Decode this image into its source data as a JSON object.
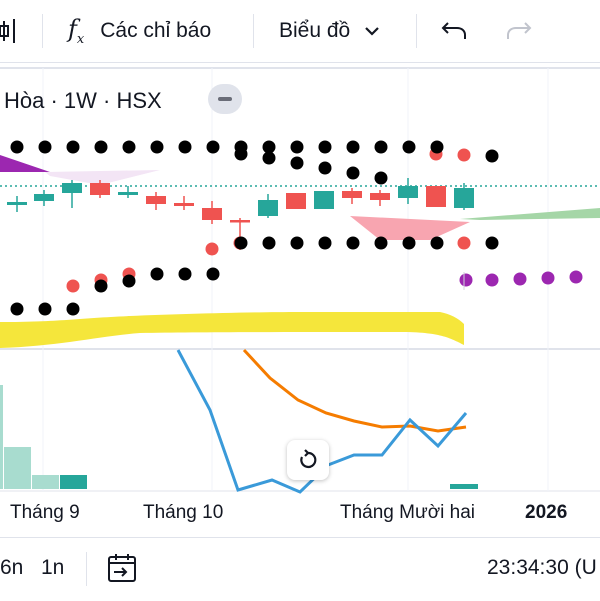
{
  "toolbar": {
    "indicators_label": "Các chỉ báo",
    "chart_type_label": "Biểu đồ",
    "icons": [
      "bars-icon",
      "fx-icon",
      "chevron-down-icon",
      "undo-icon",
      "redo-icon"
    ]
  },
  "legend": {
    "text": "Hòa · 1W · HSX"
  },
  "x_axis": {
    "labels": [
      "Tháng 9",
      "Tháng 10",
      "Tháng Mười hai",
      "2026"
    ]
  },
  "bottom": {
    "range_6m": "6n",
    "range_1y": "1n",
    "time": "23:34:30 (U"
  },
  "colors": {
    "up": "#26a69a",
    "down": "#ef5350",
    "cloud_bull": "#a5d6a7",
    "cloud_bear": "#f8a5b0",
    "baseline": "#f5e63b",
    "fast_line": "#3a9ad9",
    "slow_line": "#f57c00",
    "psar_purple": "#9c27b0",
    "dots": "#000000"
  }
}
